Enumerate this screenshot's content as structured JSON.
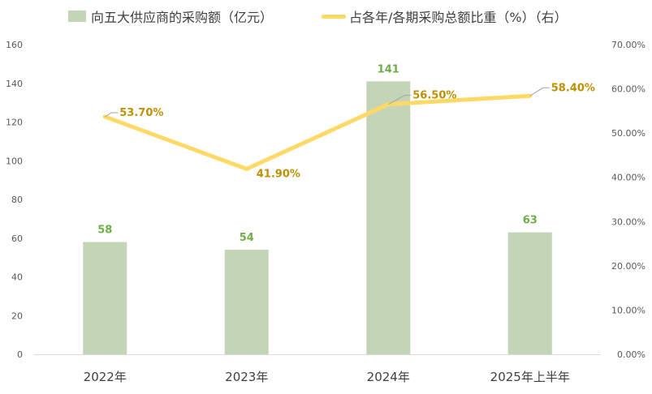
{
  "chart_data": {
    "type": "bar",
    "categories": [
      "2022年",
      "2023年",
      "2024年",
      "2025年上半年"
    ],
    "series": [
      {
        "name": "向五大供应商的采购额（亿元）",
        "type": "bar",
        "axis": "left",
        "values": [
          58,
          54,
          141,
          63
        ],
        "labels": [
          "58",
          "54",
          "141",
          "63"
        ],
        "color": "#c3d5b6",
        "label_color": "#70ad47"
      },
      {
        "name": "占各年/各期采购总额比重（%）（右）",
        "type": "line",
        "axis": "right",
        "values": [
          53.7,
          41.9,
          56.5,
          58.4
        ],
        "labels": [
          "53.70%",
          "41.90%",
          "56.50%",
          "58.40%"
        ],
        "color": "#ffd966",
        "label_color": "#bf9000"
      }
    ],
    "y_left": {
      "ylim": [
        0,
        160
      ],
      "ticks": [
        "0",
        "20",
        "40",
        "60",
        "80",
        "100",
        "120",
        "140",
        "160"
      ]
    },
    "y_right": {
      "ylim": [
        0,
        70
      ],
      "ticks": [
        "0.00%",
        "10.00%",
        "20.00%",
        "30.00%",
        "40.00%",
        "50.00%",
        "60.00%",
        "70.00%"
      ]
    },
    "grid": false,
    "legend_position": "top"
  }
}
